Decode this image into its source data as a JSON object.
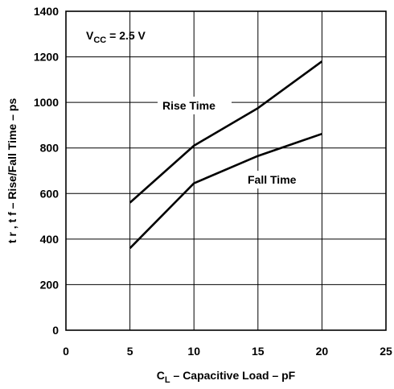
{
  "chart_data": {
    "type": "line",
    "x_ticks": [
      0,
      5,
      10,
      15,
      20,
      25
    ],
    "y_ticks": [
      0,
      200,
      400,
      600,
      800,
      1000,
      1200,
      1400
    ],
    "xlim": [
      0,
      25
    ],
    "ylim": [
      0,
      1400
    ],
    "grid": true,
    "xlabel": {
      "main": "C",
      "sub": "L",
      "rest": " – Capacitive Load – pF"
    },
    "ylabel": "t r , t f – Rise/Fall Time – ps",
    "annotation": {
      "main": "V",
      "sub": "CC",
      "rest": " = 2.5 V"
    },
    "series": [
      {
        "name": "Rise Time",
        "x": [
          5,
          10,
          15,
          20
        ],
        "values": [
          560,
          810,
          975,
          1180
        ]
      },
      {
        "name": "Fall Time",
        "x": [
          5,
          10,
          15,
          20
        ],
        "values": [
          360,
          645,
          765,
          862
        ]
      }
    ]
  }
}
